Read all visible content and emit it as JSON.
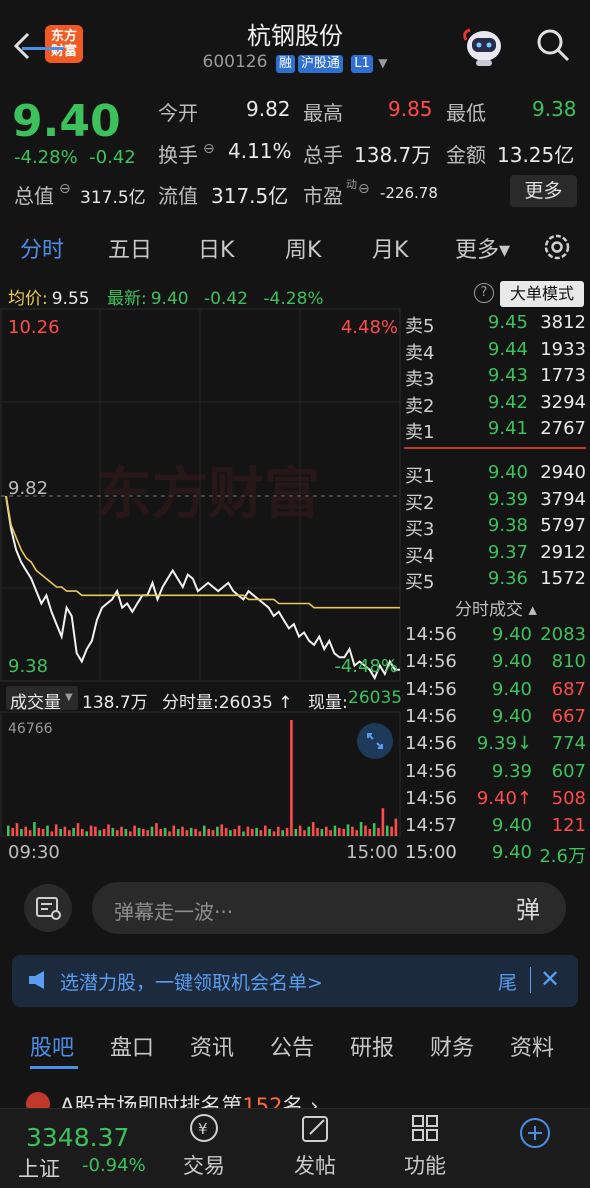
{
  "header": {
    "logo_line1": "东方",
    "logo_line2": "财富",
    "stock_name": "杭钢股份",
    "stock_code": "600126",
    "tag_rong": "融",
    "tag_hgt": "沪股通",
    "tag_level": "L1"
  },
  "quote": {
    "price": "9.40",
    "change_pct": "-4.28%",
    "change_amt": "-0.42",
    "open_label": "今开",
    "open_val": "9.82",
    "high_label": "最高",
    "high_val": "9.85",
    "low_label": "最低",
    "low_val": "9.38",
    "turnover_label": "换手",
    "turnover_val": "4.11%",
    "volume_label": "总手",
    "volume_val": "138.7万",
    "amount_label": "金额",
    "amount_val": "13.25亿",
    "mktcap_label": "总值",
    "mktcap_val": "317.5亿",
    "float_label": "流值",
    "float_val": "317.5亿",
    "pe_label": "市盈",
    "pe_sup": "动",
    "pe_val": "-226.78",
    "more_label": "更多"
  },
  "tabs": [
    "分时",
    "五日",
    "日K",
    "周K",
    "月K",
    "更多▾"
  ],
  "infoline": {
    "avg_label": "均价:",
    "avg_val": "9.55",
    "latest_label": "最新:",
    "latest_val": "9.40",
    "chg_amt": "-0.42",
    "chg_pct": "-4.28%",
    "help": "?",
    "bigorder_label": "大单模式"
  },
  "chart_data": {
    "type": "line",
    "x_start_label": "09:30",
    "x_end_label": "15:00",
    "y_top_label": "10.26",
    "y_top_pct": "4.48%",
    "y_mid_label": "9.82",
    "y_bot_label": "9.38",
    "y_bot_pct": "-4.48%",
    "ylim": [
      9.38,
      10.26
    ],
    "prev_close": 9.82,
    "series": [
      {
        "values": [
          9.82,
          9.74,
          9.69,
          9.66,
          9.64,
          9.62,
          9.59,
          9.56,
          9.58,
          9.54,
          9.51,
          9.48,
          9.55,
          9.53,
          9.44,
          9.42,
          9.45,
          9.47,
          9.52,
          9.55,
          9.56,
          9.57,
          9.59,
          9.55,
          9.56,
          9.54,
          9.56,
          9.58,
          9.58,
          9.61,
          9.57,
          9.6,
          9.62,
          9.64,
          9.62,
          9.6,
          9.63,
          9.62,
          9.59,
          9.6,
          9.61,
          9.6,
          9.59,
          9.6,
          9.61,
          9.59,
          9.58,
          9.57,
          9.59,
          9.58,
          9.57,
          9.56,
          9.55,
          9.53,
          9.54,
          9.52,
          9.5,
          9.51,
          9.48,
          9.49,
          9.47,
          9.46,
          9.48,
          9.45,
          9.47,
          9.44,
          9.43,
          9.43,
          9.45,
          9.41,
          9.42,
          9.41,
          9.4,
          9.38,
          9.41,
          9.39,
          9.42,
          9.4,
          9.4
        ]
      },
      {
        "values": [
          9.82,
          9.75,
          9.72,
          9.69,
          9.67,
          9.66,
          9.64,
          9.63,
          9.62,
          9.61,
          9.6,
          9.6,
          9.59,
          9.59,
          9.59,
          9.58,
          9.58,
          9.58,
          9.58,
          9.58,
          9.58,
          9.58,
          9.58,
          9.58,
          9.58,
          9.58,
          9.58,
          9.58,
          9.58,
          9.58,
          9.58,
          9.58,
          9.58,
          9.58,
          9.58,
          9.58,
          9.58,
          9.58,
          9.58,
          9.58,
          9.58,
          9.58,
          9.58,
          9.58,
          9.58,
          9.58,
          9.58,
          9.58,
          9.57,
          9.57,
          9.57,
          9.57,
          9.57,
          9.57,
          9.56,
          9.56,
          9.56,
          9.56,
          9.56,
          9.56,
          9.56,
          9.55,
          9.55,
          9.55,
          9.55,
          9.55,
          9.55,
          9.55,
          9.55,
          9.55,
          9.55,
          9.55,
          9.55,
          9.55,
          9.55,
          9.55,
          9.55,
          9.55,
          9.55
        ]
      }
    ]
  },
  "volume_panel": {
    "label": "成交量",
    "total": "138.7万",
    "per_min_label": "分时量:",
    "per_min_val": "26035",
    "current_label": "现量:",
    "current_val": "26035",
    "max_label": "46766",
    "bars": [
      9,
      7,
      11,
      6,
      8,
      5,
      12,
      7,
      6,
      9,
      4,
      10,
      6,
      8,
      5,
      7,
      11,
      6,
      4,
      9,
      8,
      5,
      6,
      10,
      7,
      5,
      8,
      6,
      4,
      9,
      7,
      6,
      5,
      8,
      11,
      6,
      7,
      4,
      9,
      6,
      8,
      5,
      7,
      6,
      4,
      9,
      6,
      5,
      8,
      10,
      7,
      5,
      6,
      9,
      4,
      8,
      6,
      7,
      5,
      9,
      6,
      4,
      8,
      5,
      7,
      100,
      6,
      9,
      5,
      8,
      12,
      7,
      6,
      8,
      5,
      9,
      7,
      6,
      10,
      8,
      5,
      12,
      9,
      6,
      11,
      7,
      24,
      9,
      8,
      15
    ]
  },
  "orderbook": {
    "sells": [
      {
        "label": "卖5",
        "price": "9.45",
        "vol": "3812"
      },
      {
        "label": "卖4",
        "price": "9.44",
        "vol": "1933"
      },
      {
        "label": "卖3",
        "price": "9.43",
        "vol": "1773"
      },
      {
        "label": "卖2",
        "price": "9.42",
        "vol": "3294"
      },
      {
        "label": "卖1",
        "price": "9.41",
        "vol": "2767"
      }
    ],
    "buys": [
      {
        "label": "买1",
        "price": "9.40",
        "vol": "2940"
      },
      {
        "label": "买2",
        "price": "9.39",
        "vol": "3794"
      },
      {
        "label": "买3",
        "price": "9.38",
        "vol": "5797"
      },
      {
        "label": "买4",
        "price": "9.37",
        "vol": "2912"
      },
      {
        "label": "买5",
        "price": "9.36",
        "vol": "1572"
      }
    ],
    "ticks_title": "分时成交 ▴",
    "ticks": [
      {
        "time": "14:56",
        "price": "9.40",
        "vol": "2083",
        "color": "green"
      },
      {
        "time": "14:56",
        "price": "9.40",
        "vol": "810",
        "color": "green"
      },
      {
        "time": "14:56",
        "price": "9.40",
        "vol": "687",
        "color": "red"
      },
      {
        "time": "14:56",
        "price": "9.40",
        "vol": "667",
        "color": "red"
      },
      {
        "time": "14:56",
        "price": "9.39↓",
        "vol": "774",
        "color": "green"
      },
      {
        "time": "14:56",
        "price": "9.39",
        "vol": "607",
        "color": "green"
      },
      {
        "time": "14:56",
        "price": "9.40↑",
        "vol": "508",
        "color": "red"
      },
      {
        "time": "14:57",
        "price": "9.40",
        "vol": "121",
        "color": "red"
      },
      {
        "time": "15:00",
        "price": "9.40",
        "vol": "2.6万",
        "color": "green"
      }
    ]
  },
  "danmaku": {
    "placeholder": "弹幕走一波···",
    "button": "弹"
  },
  "promo": {
    "text": "选潜力股，一键领取机会名单>",
    "tail": "尾"
  },
  "forum_tabs": [
    "股吧",
    "盘口",
    "资讯",
    "公告",
    "研报",
    "财务",
    "资料"
  ],
  "news": {
    "prefix": "A股市场即时排名第",
    "rank": "152",
    "suffix": "名"
  },
  "bottom_nav": {
    "index_val": "3348.37",
    "index_name": "上证",
    "index_pct": "-0.94%",
    "items": [
      "交易",
      "发帖",
      "功能"
    ]
  },
  "colors": {
    "up": "#ff4b4b",
    "down": "#3cc15d",
    "accent": "#4a8fe7"
  }
}
